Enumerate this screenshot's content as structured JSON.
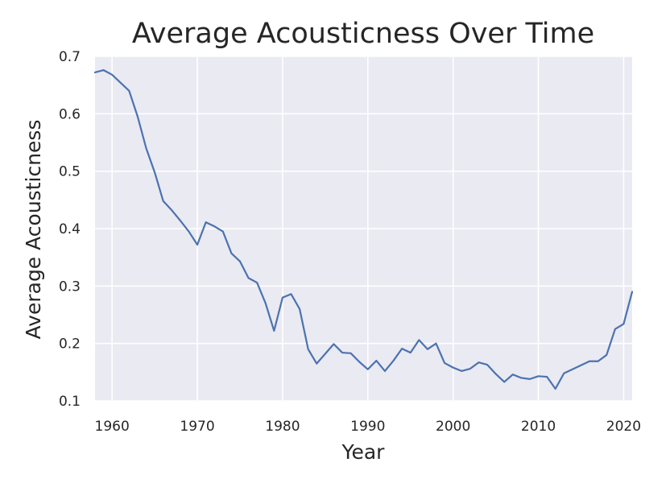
{
  "chart_data": {
    "type": "line",
    "title": "Average Acousticness Over Time",
    "xlabel": "Year",
    "ylabel": "Average Acousticness",
    "xlim": [
      1958,
      2021
    ],
    "ylim": [
      0.1,
      0.7
    ],
    "xticks": [
      1960,
      1970,
      1980,
      1990,
      2000,
      2010,
      2020
    ],
    "yticks": [
      0.1,
      0.2,
      0.3,
      0.4,
      0.5,
      0.6,
      0.7
    ],
    "grid": true,
    "background_color": "#eaeaf2",
    "series": [
      {
        "color": "#4c72b0",
        "x": [
          1958,
          1959,
          1960,
          1961,
          1962,
          1963,
          1964,
          1965,
          1966,
          1967,
          1968,
          1969,
          1970,
          1971,
          1972,
          1973,
          1974,
          1975,
          1976,
          1977,
          1978,
          1979,
          1980,
          1981,
          1982,
          1983,
          1984,
          1985,
          1986,
          1987,
          1988,
          1989,
          1990,
          1991,
          1992,
          1993,
          1994,
          1995,
          1996,
          1997,
          1998,
          1999,
          2000,
          2001,
          2002,
          2003,
          2004,
          2005,
          2006,
          2007,
          2008,
          2009,
          2010,
          2011,
          2012,
          2013,
          2014,
          2015,
          2016,
          2017,
          2018,
          2019,
          2020,
          2021
        ],
        "y": [
          0.672,
          0.676,
          0.668,
          0.654,
          0.64,
          0.595,
          0.54,
          0.498,
          0.448,
          0.432,
          0.414,
          0.395,
          0.372,
          0.411,
          0.404,
          0.395,
          0.357,
          0.343,
          0.314,
          0.306,
          0.27,
          0.222,
          0.28,
          0.286,
          0.26,
          0.19,
          0.165,
          0.182,
          0.199,
          0.184,
          0.183,
          0.168,
          0.155,
          0.17,
          0.152,
          0.17,
          0.191,
          0.184,
          0.206,
          0.19,
          0.2,
          0.166,
          0.158,
          0.152,
          0.156,
          0.167,
          0.163,
          0.147,
          0.133,
          0.146,
          0.14,
          0.138,
          0.143,
          0.142,
          0.121,
          0.148,
          0.155,
          0.162,
          0.169,
          0.169,
          0.18,
          0.225,
          0.234,
          0.29
        ]
      }
    ]
  }
}
